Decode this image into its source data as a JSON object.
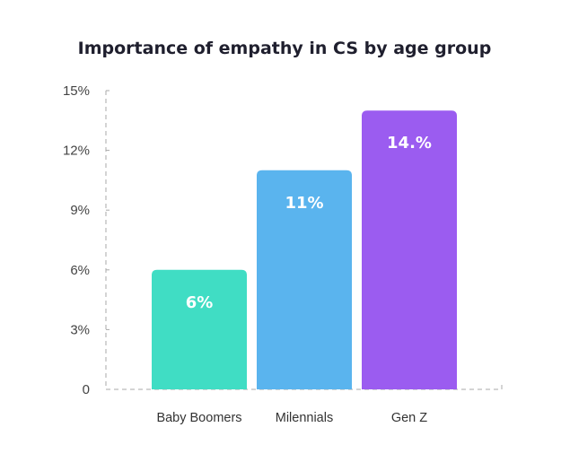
{
  "chart_data": {
    "type": "bar",
    "title": "Importance of empathy in CS by age group",
    "xlabel": "",
    "ylabel": "",
    "categories": [
      "Baby Boomers",
      "Milennials",
      "Gen Z"
    ],
    "values": [
      6,
      11,
      14
    ],
    "data_labels": [
      "6%",
      "11%",
      "14.%"
    ],
    "colors": [
      "#40DDC4",
      "#5AB4EE",
      "#9B5CF0"
    ],
    "ylim": [
      0,
      15
    ],
    "yticks": [
      0,
      3,
      6,
      9,
      12,
      15
    ],
    "ytick_labels": [
      "0",
      "3%",
      "6%",
      "9%",
      "12%",
      "15%"
    ],
    "grid": false,
    "axis_style": "dashed"
  }
}
